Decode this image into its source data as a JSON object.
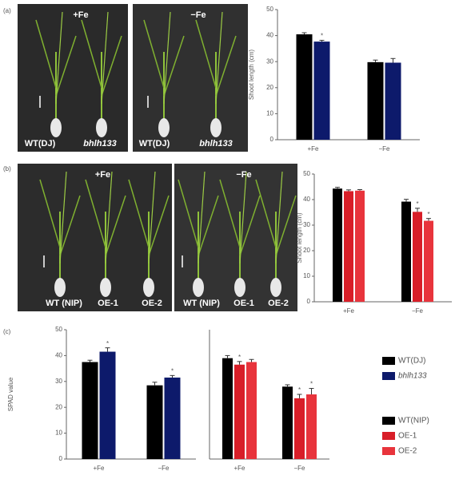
{
  "panel_labels": [
    "(a)",
    "(b)",
    "(c)"
  ],
  "photos": [
    {
      "title": "+Fe",
      "labels": [
        "WT(DJ)",
        "bhlh133"
      ]
    },
    {
      "title": "−Fe",
      "labels": [
        "WT(DJ)",
        "bhlh133"
      ]
    },
    {
      "title": "+Fe",
      "labels": [
        "WT (NIP)",
        "OE-1",
        "OE-2"
      ]
    },
    {
      "title": "−Fe",
      "labels": [
        "WT (NIP)",
        "OE-1",
        "OE-2"
      ]
    }
  ],
  "chart_data": [
    {
      "type": "bar",
      "ylabel": "Shoot length (cm)",
      "categories": [
        "+Fe",
        "−Fe"
      ],
      "ylim": [
        0,
        50
      ],
      "yticks": [
        0,
        10,
        20,
        30,
        40,
        50
      ],
      "series": [
        {
          "color": "#000000",
          "values": [
            40.5,
            29.8
          ],
          "errors": [
            0.6,
            0.8
          ],
          "significance": [
            null,
            null
          ]
        },
        {
          "color": "#0d1a6b",
          "values": [
            37.7,
            29.6
          ],
          "errors": [
            0.5,
            1.6
          ],
          "significance": [
            "*",
            null
          ]
        }
      ]
    },
    {
      "type": "bar",
      "ylabel": "Shoot length (cm)",
      "categories": [
        "+Fe",
        "−Fe"
      ],
      "ylim": [
        0,
        50
      ],
      "yticks": [
        0,
        10,
        20,
        30,
        40,
        50
      ],
      "series": [
        {
          "color": "#000000",
          "values": [
            44.3,
            39.2
          ],
          "errors": [
            0.5,
            0.9
          ],
          "significance": [
            null,
            null
          ]
        },
        {
          "color": "#d81e28",
          "values": [
            43.3,
            35.2
          ],
          "errors": [
            0.5,
            1.4
          ],
          "significance": [
            null,
            "*"
          ]
        },
        {
          "color": "#e8343c",
          "values": [
            43.5,
            31.7
          ],
          "errors": [
            0.4,
            0.9
          ],
          "significance": [
            null,
            "*"
          ]
        }
      ]
    },
    {
      "type": "bar",
      "ylabel": "SPAD value",
      "categories": [
        "+Fe",
        "−Fe"
      ],
      "ylim": [
        0,
        50
      ],
      "yticks": [
        0,
        10,
        20,
        30,
        40,
        50
      ],
      "series": [
        {
          "name": "WT(DJ)",
          "italic": false,
          "color": "#000000",
          "values": [
            37.5,
            28.5
          ],
          "errors": [
            0.7,
            1.2
          ],
          "significance": [
            null,
            null
          ]
        },
        {
          "name": "bhlh133",
          "italic": true,
          "color": "#0d1a6b",
          "values": [
            41.5,
            31.5
          ],
          "errors": [
            1.5,
            0.8
          ],
          "significance": [
            "*",
            "*"
          ]
        }
      ]
    },
    {
      "type": "bar",
      "categories": [
        "+Fe",
        "−Fe"
      ],
      "ylim": [
        0,
        50
      ],
      "series": [
        {
          "name": "WT(NIP)",
          "italic": false,
          "color": "#000000",
          "values": [
            39,
            28
          ],
          "errors": [
            1,
            0.7
          ],
          "significance": [
            null,
            null
          ]
        },
        {
          "name": "OE-1",
          "italic": false,
          "color": "#d81e28",
          "values": [
            36.5,
            23.5
          ],
          "errors": [
            1.2,
            1.5
          ],
          "significance": [
            "*",
            "*"
          ]
        },
        {
          "name": "OE-2",
          "italic": false,
          "color": "#e8343c",
          "values": [
            37.5,
            25
          ],
          "errors": [
            1,
            2.3
          ],
          "significance": [
            null,
            "*"
          ]
        }
      ]
    }
  ]
}
